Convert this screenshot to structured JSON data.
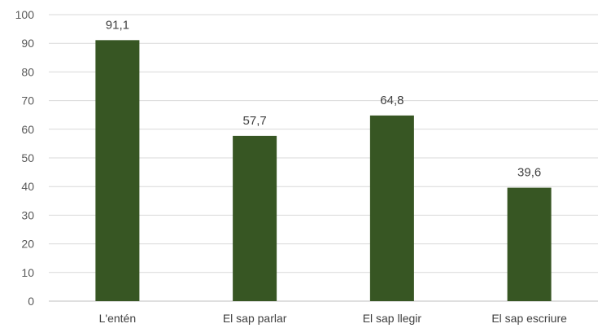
{
  "chart_data": {
    "type": "bar",
    "categories": [
      "L'entén",
      "El sap parlar",
      "El sap llegir",
      "El sap escriure"
    ],
    "values": [
      91.1,
      57.7,
      64.8,
      39.6
    ],
    "data_labels": [
      "91,1",
      "57,7",
      "64,8",
      "39,6"
    ],
    "title": "",
    "xlabel": "",
    "ylabel": "",
    "ylim": [
      0,
      100
    ],
    "yticks": [
      0,
      10,
      20,
      30,
      40,
      50,
      60,
      70,
      80,
      90,
      100
    ],
    "grid": true,
    "legend": "none",
    "bar_color": "#375623"
  }
}
